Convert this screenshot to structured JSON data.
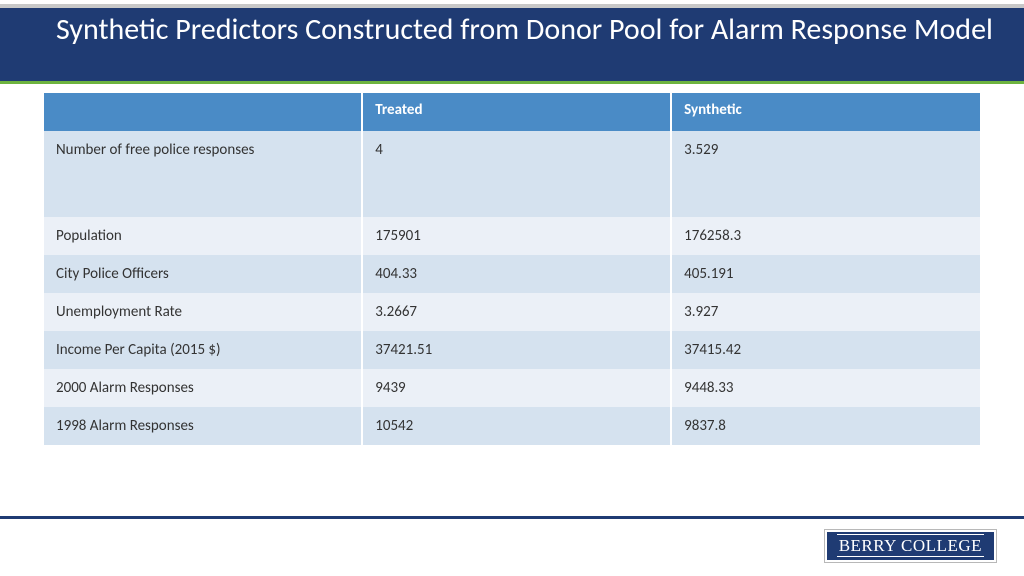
{
  "title": "Synthetic Predictors Constructed from Donor Pool for Alarm Response Model",
  "logo": "BERRY COLLEGE",
  "table": {
    "type": "table",
    "columns": [
      "",
      "Treated",
      "Synthetic"
    ],
    "rows": [
      {
        "label": "Number of free police responses",
        "treated": "4",
        "synthetic": "3.529"
      },
      {
        "label": "Population",
        "treated": "175901",
        "synthetic": "176258.3"
      },
      {
        "label": "City Police Officers",
        "treated": "404.33",
        "synthetic": "405.191"
      },
      {
        "label": "Unemployment Rate",
        "treated": "3.2667",
        "synthetic": "3.927"
      },
      {
        "label": "Income Per Capita (2015 $)",
        "treated": "37421.51",
        "synthetic": "37415.42"
      },
      {
        "label": "2000 Alarm Responses",
        "treated": "9439",
        "synthetic": "9448.33"
      },
      {
        "label": "1998 Alarm Responses",
        "treated": "10542",
        "synthetic": "9837.8"
      }
    ],
    "header_bg": "#4a8bc6",
    "band_a_bg": "#d5e2ef",
    "band_b_bg": "#ebf0f7",
    "title_band_bg": "#1f3b73",
    "accent_rule": "#6db33f",
    "font_size_body": 15,
    "font_size_title": 30
  }
}
